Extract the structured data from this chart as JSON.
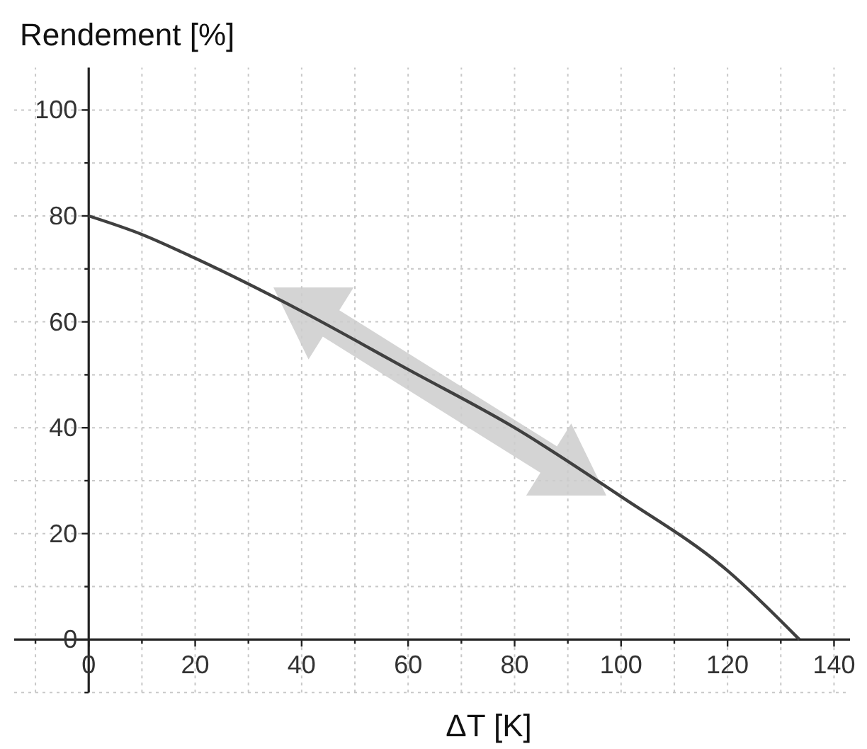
{
  "chart_data": {
    "type": "line",
    "title": "Rendement [%]",
    "xlabel": "ΔT [K]",
    "x": [
      0,
      10,
      20,
      40,
      60,
      80,
      100,
      120,
      133.5
    ],
    "series": [
      {
        "color": "#404040",
        "values": [
          80,
          76.5,
          72,
          62,
          51,
          40,
          27,
          13,
          0
        ]
      }
    ],
    "xlim": [
      -14,
      143
    ],
    "ylim": [
      -10,
      108
    ],
    "xticks": [
      {
        "value": -10,
        "label": null
      },
      0,
      {
        "value": 10,
        "label": null
      },
      20,
      {
        "value": 30,
        "label": null
      },
      40,
      {
        "value": 50,
        "label": null
      },
      60,
      {
        "value": 70,
        "label": null
      },
      80,
      {
        "value": 90,
        "label": null
      },
      100,
      {
        "value": 110,
        "label": null
      },
      120,
      {
        "value": 130,
        "label": null
      },
      140
    ],
    "yticks": [
      {
        "value": -10,
        "label": null
      },
      0,
      {
        "value": 10,
        "label": null
      },
      20,
      {
        "value": 30,
        "label": null
      },
      40,
      {
        "value": 50,
        "label": null
      },
      60,
      {
        "value": 70,
        "label": null
      },
      80,
      {
        "value": 90,
        "label": null
      },
      100
    ],
    "grid": true,
    "marker": "none",
    "line_style": "solid"
  }
}
